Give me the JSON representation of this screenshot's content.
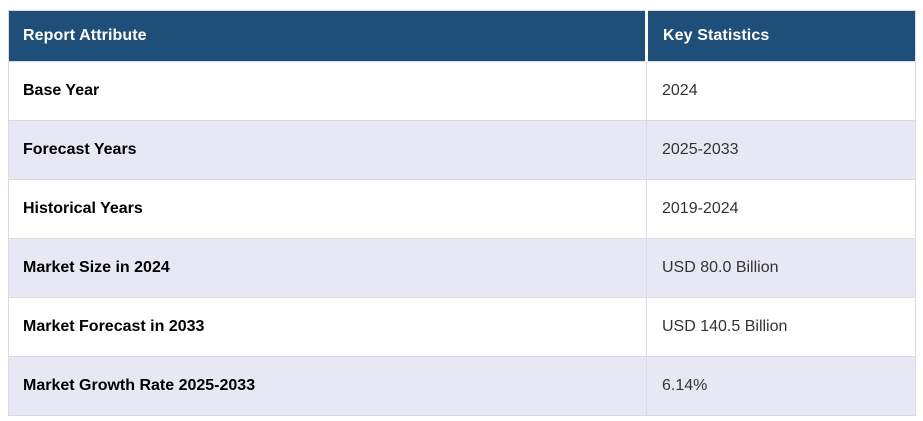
{
  "chart_data": {
    "type": "table",
    "columns": [
      "Report Attribute",
      "Key Statistics"
    ],
    "rows": [
      [
        "Base Year",
        "2024"
      ],
      [
        "Forecast Years",
        "2025-2033"
      ],
      [
        "Historical Years",
        "2019-2024"
      ],
      [
        "Market Size in 2024",
        "USD 80.0 Billion"
      ],
      [
        "Market Forecast in 2033",
        "USD 140.5 Billion"
      ],
      [
        "Market Growth Rate 2025-2033",
        "6.14%"
      ]
    ]
  },
  "colors": {
    "header_bg": "#1F4E79",
    "header_text": "#FFFFFF",
    "row_white": "#FFFFFF",
    "row_alt": "#E7E8F3",
    "border": "#DBDBE3",
    "label_text": "#000000",
    "value_text": "#333333"
  }
}
